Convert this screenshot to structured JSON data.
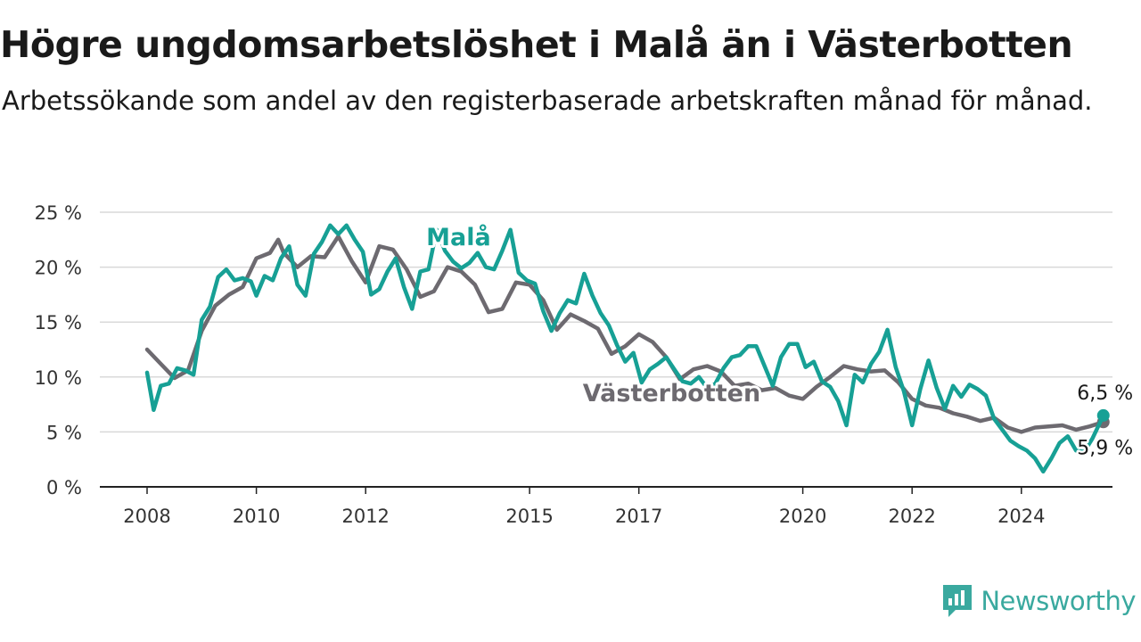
{
  "header": {
    "title": "Högre ungdomsarbetslöshet i Malå än i Västerbotten",
    "subtitle": "Arbetssökande som andel av den registerbaserade arbetskraften månad för månad."
  },
  "brand": {
    "name": "Newsworthy",
    "color": "#3aa99f",
    "icon": "newsworthy-logo-icon"
  },
  "chart_data": {
    "type": "line",
    "x_unit": "year",
    "xlim": [
      2008,
      2025.5
    ],
    "ylim": [
      0,
      25
    ],
    "grid": true,
    "y_ticks": [
      {
        "value": 0,
        "label": "0 %"
      },
      {
        "value": 5,
        "label": "5 %"
      },
      {
        "value": 10,
        "label": "10 %"
      },
      {
        "value": 15,
        "label": "15 %"
      },
      {
        "value": 20,
        "label": "20 %"
      },
      {
        "value": 25,
        "label": "25 %"
      }
    ],
    "x_ticks": [
      {
        "value": 2008,
        "label": "2008"
      },
      {
        "value": 2010,
        "label": "2010"
      },
      {
        "value": 2012,
        "label": "2012"
      },
      {
        "value": 2015,
        "label": "2015"
      },
      {
        "value": 2017,
        "label": "2017"
      },
      {
        "value": 2020,
        "label": "2020"
      },
      {
        "value": 2022,
        "label": "2022"
      },
      {
        "value": 2024,
        "label": "2024"
      }
    ],
    "series": [
      {
        "name": "Västerbotten",
        "color": "#6d6a70",
        "last_label": "5,9 %",
        "label_at": [
          2017.6,
          7.8
        ],
        "points": [
          [
            2008.0,
            12.5
          ],
          [
            2008.25,
            11.2
          ],
          [
            2008.5,
            9.9
          ],
          [
            2008.75,
            10.6
          ],
          [
            2009.0,
            14.2
          ],
          [
            2009.25,
            16.5
          ],
          [
            2009.5,
            17.5
          ],
          [
            2009.75,
            18.2
          ],
          [
            2010.0,
            20.8
          ],
          [
            2010.25,
            21.3
          ],
          [
            2010.4,
            22.5
          ],
          [
            2010.5,
            21.3
          ],
          [
            2010.75,
            20.0
          ],
          [
            2011.0,
            21.0
          ],
          [
            2011.25,
            20.9
          ],
          [
            2011.5,
            22.8
          ],
          [
            2011.75,
            20.5
          ],
          [
            2012.0,
            18.6
          ],
          [
            2012.25,
            21.9
          ],
          [
            2012.5,
            21.6
          ],
          [
            2012.75,
            19.8
          ],
          [
            2013.0,
            17.3
          ],
          [
            2013.25,
            17.8
          ],
          [
            2013.5,
            20.0
          ],
          [
            2013.75,
            19.6
          ],
          [
            2014.0,
            18.4
          ],
          [
            2014.25,
            15.9
          ],
          [
            2014.5,
            16.2
          ],
          [
            2014.75,
            18.6
          ],
          [
            2015.0,
            18.4
          ],
          [
            2015.25,
            17.0
          ],
          [
            2015.5,
            14.3
          ],
          [
            2015.75,
            15.7
          ],
          [
            2016.0,
            15.1
          ],
          [
            2016.25,
            14.4
          ],
          [
            2016.5,
            12.1
          ],
          [
            2016.75,
            12.8
          ],
          [
            2017.0,
            13.9
          ],
          [
            2017.25,
            13.2
          ],
          [
            2017.5,
            11.8
          ],
          [
            2017.75,
            9.8
          ],
          [
            2018.0,
            10.7
          ],
          [
            2018.25,
            11.0
          ],
          [
            2018.5,
            10.5
          ],
          [
            2018.75,
            9.2
          ],
          [
            2019.0,
            9.4
          ],
          [
            2019.25,
            8.8
          ],
          [
            2019.5,
            9.0
          ],
          [
            2019.75,
            8.3
          ],
          [
            2020.0,
            8.0
          ],
          [
            2020.25,
            9.1
          ],
          [
            2020.5,
            10.0
          ],
          [
            2020.75,
            11.0
          ],
          [
            2021.0,
            10.7
          ],
          [
            2021.25,
            10.5
          ],
          [
            2021.5,
            10.6
          ],
          [
            2021.75,
            9.5
          ],
          [
            2022.0,
            8.0
          ],
          [
            2022.25,
            7.4
          ],
          [
            2022.5,
            7.2
          ],
          [
            2022.75,
            6.7
          ],
          [
            2023.0,
            6.4
          ],
          [
            2023.25,
            6.0
          ],
          [
            2023.5,
            6.3
          ],
          [
            2023.75,
            5.4
          ],
          [
            2024.0,
            5.0
          ],
          [
            2024.25,
            5.4
          ],
          [
            2024.5,
            5.5
          ],
          [
            2024.75,
            5.6
          ],
          [
            2025.0,
            5.2
          ],
          [
            2025.25,
            5.5
          ],
          [
            2025.5,
            5.9
          ]
        ]
      },
      {
        "name": "Malå",
        "color": "#17a095",
        "last_label": "6,5 %",
        "label_at": [
          2013.7,
          22.0
        ],
        "points": [
          [
            2008.0,
            10.4
          ],
          [
            2008.12,
            7.0
          ],
          [
            2008.25,
            9.2
          ],
          [
            2008.4,
            9.4
          ],
          [
            2008.55,
            10.8
          ],
          [
            2008.7,
            10.6
          ],
          [
            2008.85,
            10.2
          ],
          [
            2009.0,
            15.2
          ],
          [
            2009.15,
            16.4
          ],
          [
            2009.3,
            19.1
          ],
          [
            2009.45,
            19.8
          ],
          [
            2009.6,
            18.8
          ],
          [
            2009.75,
            19.0
          ],
          [
            2009.9,
            18.7
          ],
          [
            2010.0,
            17.4
          ],
          [
            2010.15,
            19.2
          ],
          [
            2010.3,
            18.8
          ],
          [
            2010.45,
            20.8
          ],
          [
            2010.6,
            21.9
          ],
          [
            2010.75,
            18.4
          ],
          [
            2010.9,
            17.4
          ],
          [
            2011.05,
            21.2
          ],
          [
            2011.2,
            22.3
          ],
          [
            2011.35,
            23.8
          ],
          [
            2011.5,
            23.0
          ],
          [
            2011.65,
            23.8
          ],
          [
            2011.8,
            22.5
          ],
          [
            2011.95,
            21.4
          ],
          [
            2012.1,
            17.5
          ],
          [
            2012.25,
            18.0
          ],
          [
            2012.4,
            19.6
          ],
          [
            2012.55,
            20.8
          ],
          [
            2012.7,
            18.2
          ],
          [
            2012.85,
            16.2
          ],
          [
            2013.0,
            19.6
          ],
          [
            2013.15,
            19.8
          ],
          [
            2013.3,
            23.4
          ],
          [
            2013.45,
            21.5
          ],
          [
            2013.6,
            20.5
          ],
          [
            2013.75,
            19.9
          ],
          [
            2013.9,
            20.4
          ],
          [
            2014.05,
            21.3
          ],
          [
            2014.2,
            20.0
          ],
          [
            2014.35,
            19.8
          ],
          [
            2014.5,
            21.5
          ],
          [
            2014.65,
            23.4
          ],
          [
            2014.8,
            19.5
          ],
          [
            2014.95,
            18.8
          ],
          [
            2015.1,
            18.5
          ],
          [
            2015.25,
            16.0
          ],
          [
            2015.4,
            14.2
          ],
          [
            2015.55,
            15.8
          ],
          [
            2015.7,
            17.0
          ],
          [
            2015.85,
            16.7
          ],
          [
            2016.0,
            19.4
          ],
          [
            2016.15,
            17.4
          ],
          [
            2016.3,
            15.8
          ],
          [
            2016.45,
            14.7
          ],
          [
            2016.6,
            12.9
          ],
          [
            2016.75,
            11.4
          ],
          [
            2016.9,
            12.2
          ],
          [
            2017.05,
            9.5
          ],
          [
            2017.2,
            10.7
          ],
          [
            2017.35,
            11.2
          ],
          [
            2017.5,
            11.8
          ],
          [
            2017.65,
            10.7
          ],
          [
            2017.8,
            9.6
          ],
          [
            2017.95,
            9.4
          ],
          [
            2018.1,
            10.0
          ],
          [
            2018.25,
            9.0
          ],
          [
            2018.4,
            9.4
          ],
          [
            2018.55,
            10.8
          ],
          [
            2018.7,
            11.8
          ],
          [
            2018.85,
            12.0
          ],
          [
            2019.0,
            12.8
          ],
          [
            2019.15,
            12.8
          ],
          [
            2019.3,
            11.0
          ],
          [
            2019.45,
            9.2
          ],
          [
            2019.6,
            11.8
          ],
          [
            2019.75,
            13.0
          ],
          [
            2019.9,
            13.0
          ],
          [
            2020.05,
            10.9
          ],
          [
            2020.2,
            11.4
          ],
          [
            2020.35,
            9.6
          ],
          [
            2020.5,
            9.1
          ],
          [
            2020.65,
            7.8
          ],
          [
            2020.8,
            5.6
          ],
          [
            2020.95,
            10.2
          ],
          [
            2021.1,
            9.5
          ],
          [
            2021.25,
            11.2
          ],
          [
            2021.4,
            12.3
          ],
          [
            2021.55,
            14.3
          ],
          [
            2021.7,
            10.9
          ],
          [
            2021.85,
            8.7
          ],
          [
            2022.0,
            5.6
          ],
          [
            2022.15,
            8.9
          ],
          [
            2022.3,
            11.5
          ],
          [
            2022.45,
            9.0
          ],
          [
            2022.6,
            7.1
          ],
          [
            2022.75,
            9.2
          ],
          [
            2022.9,
            8.2
          ],
          [
            2023.05,
            9.3
          ],
          [
            2023.2,
            8.9
          ],
          [
            2023.35,
            8.3
          ],
          [
            2023.5,
            6.2
          ],
          [
            2023.65,
            5.2
          ],
          [
            2023.8,
            4.2
          ],
          [
            2023.95,
            3.7
          ],
          [
            2024.1,
            3.3
          ],
          [
            2024.25,
            2.6
          ],
          [
            2024.4,
            1.4
          ],
          [
            2024.55,
            2.6
          ],
          [
            2024.7,
            4.0
          ],
          [
            2024.85,
            4.6
          ],
          [
            2025.0,
            3.3
          ],
          [
            2025.15,
            3.2
          ],
          [
            2025.3,
            4.4
          ],
          [
            2025.5,
            6.5
          ]
        ]
      }
    ]
  }
}
